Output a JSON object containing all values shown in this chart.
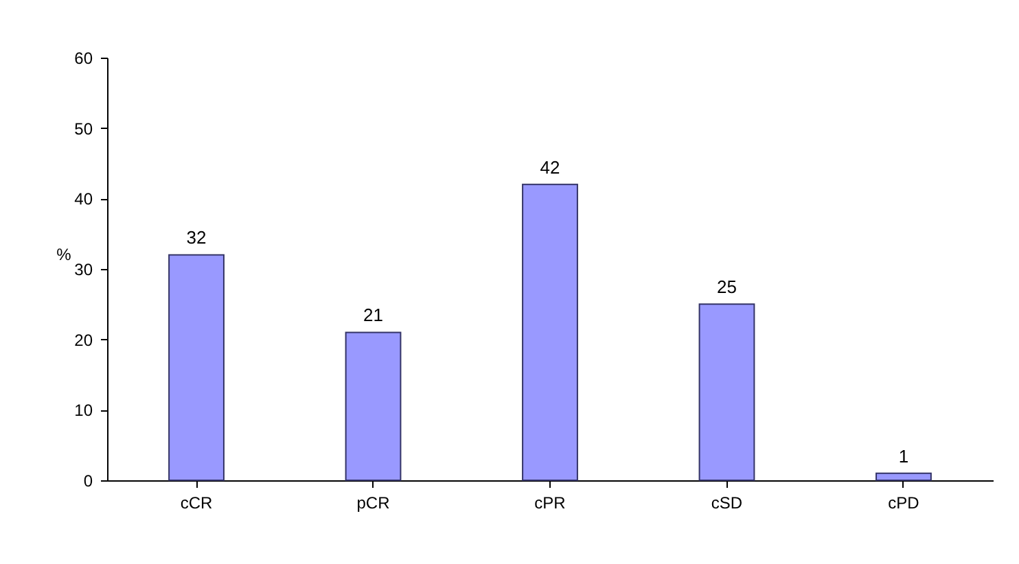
{
  "chart_data": {
    "type": "bar",
    "categories": [
      "cCR",
      "pCR",
      "cPR",
      "cSD",
      "cPD"
    ],
    "values": [
      32,
      21,
      42,
      25,
      1
    ],
    "color": "#9999ff",
    "ylabel": "%",
    "ylim": [
      0,
      60
    ],
    "yticks": [
      0,
      10,
      20,
      30,
      40,
      50,
      60
    ],
    "grid": false,
    "data_labels": true
  }
}
